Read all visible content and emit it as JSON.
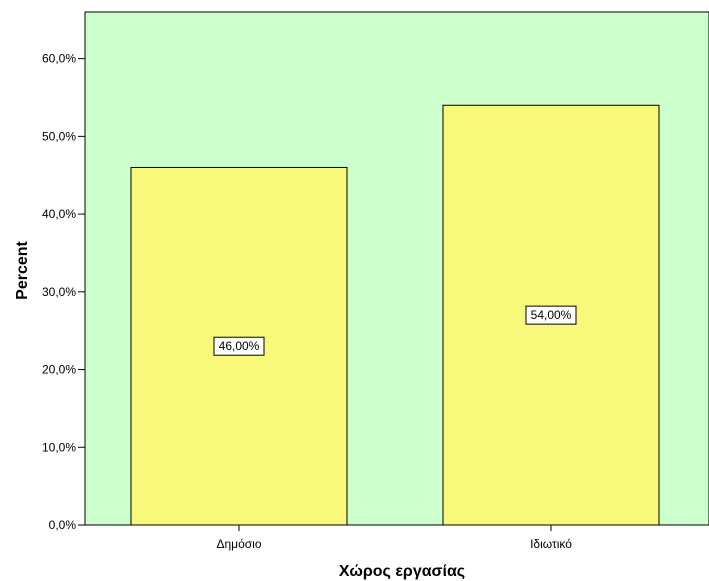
{
  "chart_data": {
    "type": "bar",
    "categories": [
      "Δημόσιο",
      "Ιδιωτικό"
    ],
    "values": [
      46.0,
      54.0
    ],
    "data_labels": [
      "46,00%",
      "54,00%"
    ],
    "xlabel": "Χώρος εργασίας",
    "ylabel": "Percent",
    "ylim": [
      0,
      66
    ],
    "yticks": [
      0,
      10,
      20,
      30,
      40,
      50,
      60
    ],
    "ytick_labels": [
      "0,0%",
      "10,0%",
      "20,0%",
      "30,0%",
      "40,0%",
      "50,0%",
      "60,0%"
    ],
    "grid": false,
    "legend": "none",
    "colors": {
      "plot_background": "#ccffcc",
      "bar_fill": "#f8f87a",
      "bar_stroke": "#000000"
    }
  }
}
